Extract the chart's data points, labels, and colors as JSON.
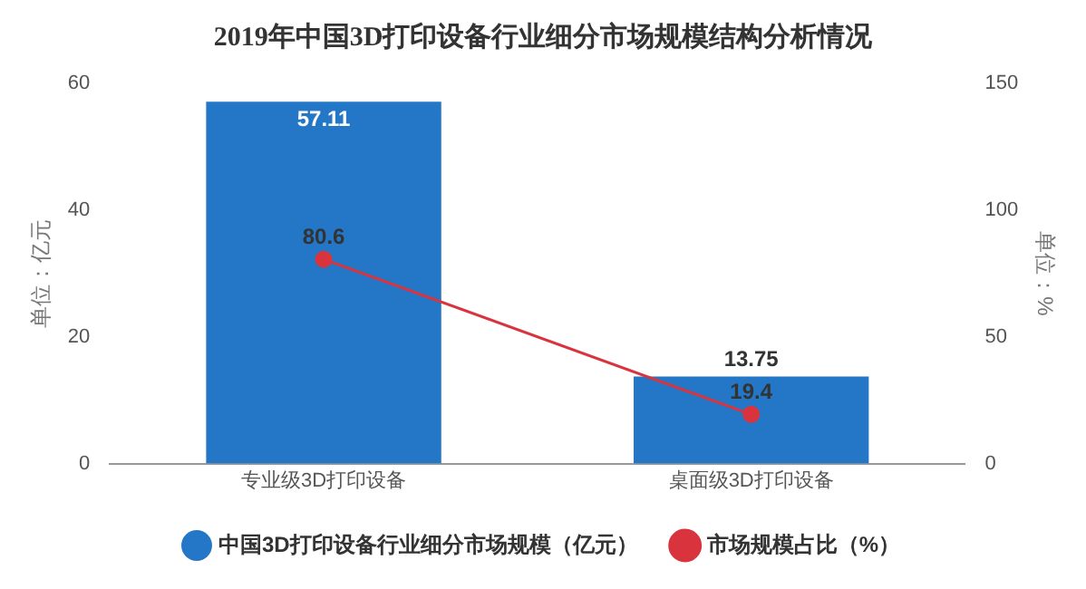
{
  "chart_data": {
    "type": "bar",
    "title": "2019年中国3D打印设备行业细分市场规模结构分析情况",
    "ylabel": "单位：亿元",
    "y2label": "单位：%",
    "categories": [
      "专业级3D打印设备",
      "桌面级3D打印设备"
    ],
    "series": [
      {
        "name": "中国3D打印设备行业细分市场规模（亿元）",
        "color": "#2377c6",
        "values": [
          57.11,
          13.75
        ]
      },
      {
        "type": "line",
        "name": "市场规模占比（%）",
        "color": "#d9343d",
        "values": [
          80.6,
          19.4
        ],
        "axis": "y2"
      }
    ],
    "ylim": [
      0,
      60
    ],
    "yticks": [
      0,
      20,
      40,
      60
    ],
    "y2lim": [
      0,
      150
    ],
    "y2ticks": [
      0,
      50,
      100,
      150
    ],
    "data_labels": true,
    "legend": "bottom",
    "marker": "circle"
  }
}
